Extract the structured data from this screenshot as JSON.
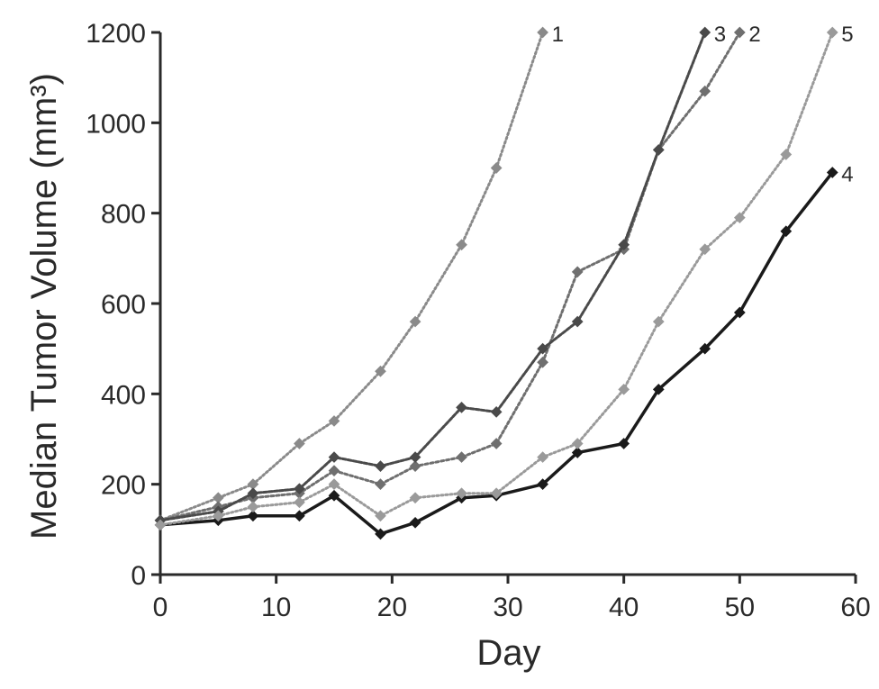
{
  "colors": {
    "axis": "#2a2a2a",
    "text": "#2a2a2a",
    "background": "#ffffff"
  },
  "chart_data": {
    "type": "line",
    "title": "",
    "xlabel": "Day",
    "ylabel": "Median Tumor Volume (mm³)",
    "xlim": [
      0,
      60
    ],
    "ylim": [
      0,
      1200
    ],
    "xticks": [
      0,
      10,
      20,
      30,
      40,
      50,
      60
    ],
    "yticks": [
      0,
      200,
      400,
      600,
      800,
      1000,
      1200
    ],
    "grid": false,
    "legend": "none",
    "series": [
      {
        "name": "1",
        "label": "1",
        "color": "#8a8a8a",
        "dash": "2 3",
        "width": 3,
        "x": [
          0,
          5,
          8,
          12,
          15,
          19,
          22,
          26,
          29,
          33
        ],
        "y": [
          120,
          170,
          200,
          290,
          340,
          450,
          560,
          730,
          900,
          1200
        ]
      },
      {
        "name": "2",
        "label": "2",
        "color": "#6f6f6f",
        "dash": "3 3",
        "width": 3,
        "x": [
          0,
          5,
          8,
          12,
          15,
          19,
          22,
          26,
          29,
          33,
          36,
          40,
          43,
          47,
          50
        ],
        "y": [
          120,
          150,
          170,
          180,
          230,
          200,
          240,
          260,
          290,
          470,
          670,
          720,
          940,
          1070,
          1200
        ]
      },
      {
        "name": "3",
        "label": "3",
        "color": "#4a4a4a",
        "dash": "4 2",
        "width": 3,
        "x": [
          0,
          5,
          8,
          12,
          15,
          19,
          22,
          26,
          29,
          33,
          36,
          40,
          43,
          47
        ],
        "y": [
          120,
          140,
          180,
          190,
          260,
          240,
          260,
          370,
          360,
          500,
          560,
          730,
          940,
          1200
        ]
      },
      {
        "name": "4",
        "label": "4",
        "color": "#1a1a1a",
        "dash": "",
        "width": 3.5,
        "x": [
          0,
          5,
          8,
          12,
          15,
          19,
          22,
          26,
          29,
          33,
          36,
          40,
          43,
          47,
          50,
          54,
          58
        ],
        "y": [
          110,
          120,
          130,
          130,
          175,
          90,
          115,
          170,
          175,
          200,
          270,
          290,
          410,
          500,
          580,
          760,
          890
        ]
      },
      {
        "name": "5",
        "label": "5",
        "color": "#9a9a9a",
        "dash": "2 3",
        "width": 3,
        "x": [
          0,
          5,
          8,
          12,
          15,
          19,
          22,
          26,
          29,
          33,
          36,
          40,
          43,
          47,
          50,
          54,
          58
        ],
        "y": [
          110,
          130,
          150,
          160,
          200,
          130,
          170,
          180,
          180,
          260,
          290,
          410,
          560,
          720,
          790,
          930,
          1200
        ]
      }
    ]
  }
}
